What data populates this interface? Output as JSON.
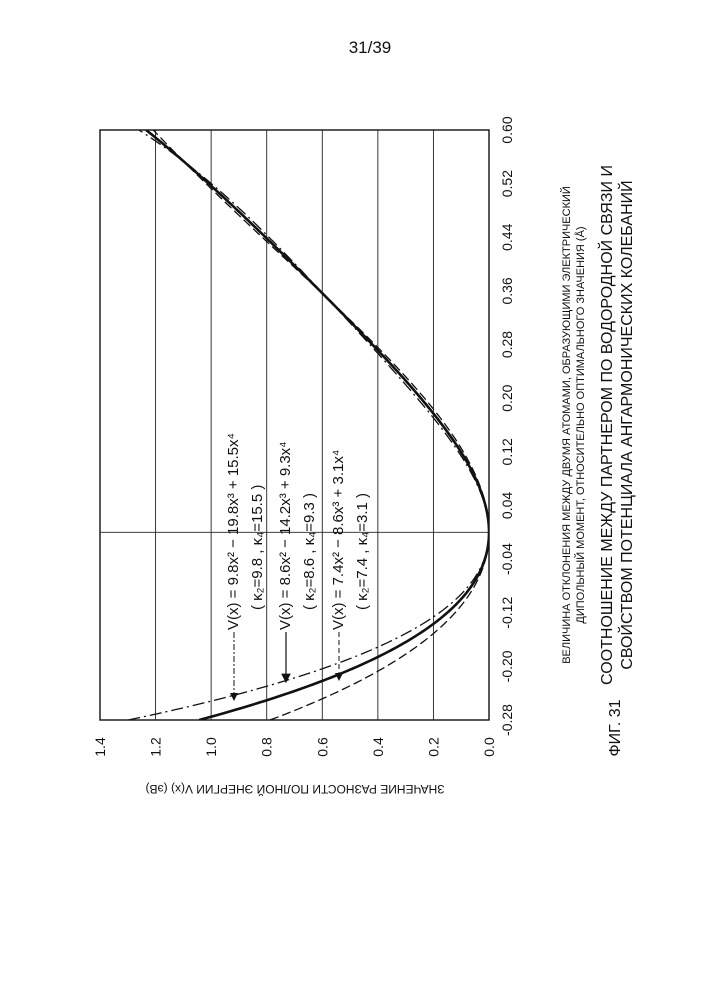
{
  "page_number": "31/39",
  "figure_label": "ФИГ. 31",
  "caption_line1": "СООТНОШЕНИЕ МЕЖДУ ПАРТНЕРОМ ПО ВОДОРОДНОЙ СВЯЗИ И",
  "caption_line2": "СВОЙСТВОМ ПОТЕНЦИАЛА АНГАРМОНИЧЕСКИХ КОЛЕБАНИЙ",
  "chart_data": {
    "type": "line",
    "title": "",
    "xlabel_line1": "ВЕЛИЧИНА ОТКЛОНЕНИЯ МЕЖДУ ДВУМЯ АТОМАМИ, ОБРАЗУЮЩИМИ ЭЛЕКТРИЧЕСКИЙ",
    "xlabel_line2": "ДИПОЛЬНЫЙ МОМЕНТ, ОТНОСИТЕЛЬНО ОПТИМАЛЬНОГО ЗНАЧЕНИЯ (Å)",
    "ylabel": "ЗНАЧЕНИЕ РАЗНОСТИ ПОЛНОЙ ЭНЕРГИИ V(x) (эВ)",
    "xlim": [
      -0.28,
      0.6
    ],
    "ylim": [
      0.0,
      1.4
    ],
    "x_ticks": [
      "-0.28",
      "-0.20",
      "-0.12",
      "-0.04",
      "0.04",
      "0.12",
      "0.20",
      "0.28",
      "0.36",
      "0.44",
      "0.52",
      "0.60"
    ],
    "y_ticks": [
      "0.0",
      "0.2",
      "0.4",
      "0.6",
      "0.8",
      "1.0",
      "1.2",
      "1.4"
    ],
    "grid": true,
    "series": [
      {
        "name": "κ2=9.8, κ4=15.5",
        "style": "dash-dot",
        "coefficients": [
          9.8,
          -19.8,
          15.5
        ],
        "equation": "V(x) = 9.8x² − 19.8x³ + 15.5x⁴",
        "params": "( κ₂=9.8 , κ₄=15.5 )"
      },
      {
        "name": "κ2=8.6, κ4=9.3",
        "style": "solid",
        "coefficients": [
          8.6,
          -14.2,
          9.3
        ],
        "equation": "V(x) = 8.6x² − 14.2x³ + 9.3x⁴",
        "params": "( κ₂=8.6 , κ₄=9.3 )"
      },
      {
        "name": "κ2=7.4, κ4=3.1",
        "style": "dashed",
        "coefficients": [
          7.4,
          -8.6,
          3.1
        ],
        "equation": "V(x) = 7.4x² − 8.6x³ + 3.1x⁴",
        "params": "( κ₂=7.4 , κ₄=3.1 )"
      }
    ]
  }
}
